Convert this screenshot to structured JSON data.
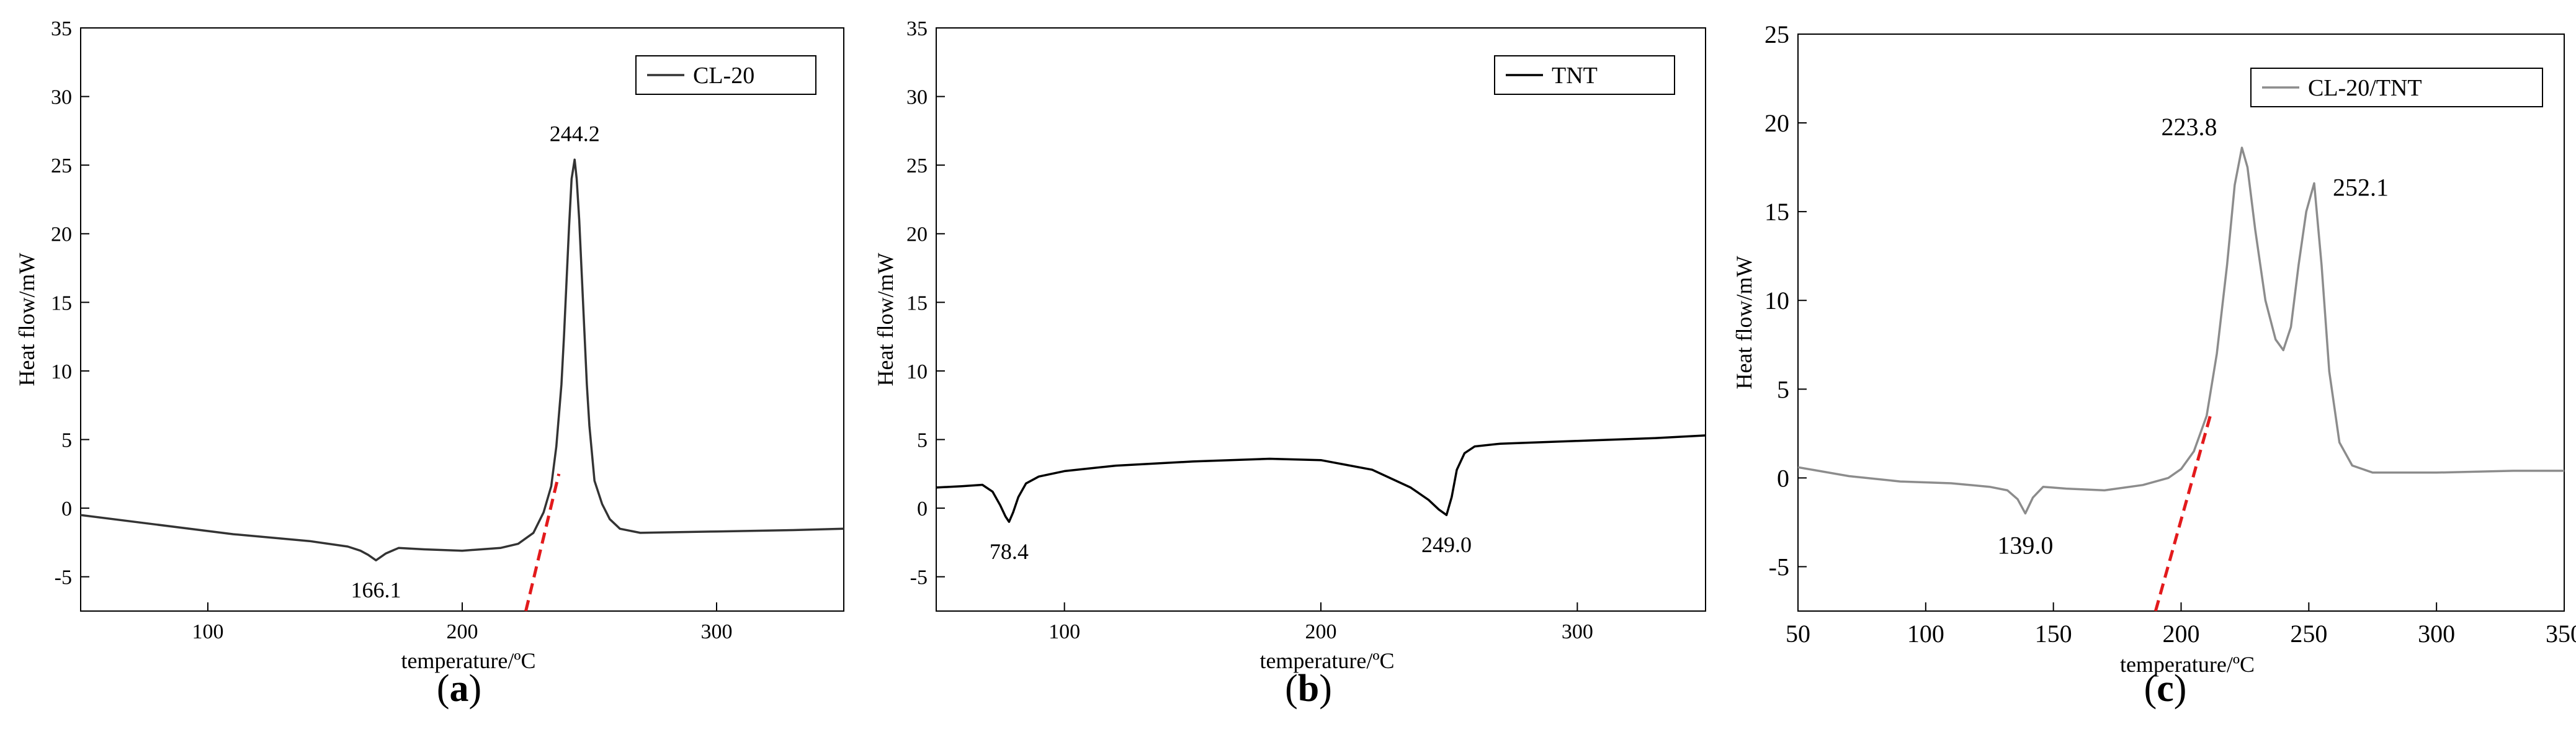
{
  "chart_data": [
    {
      "type": "line",
      "panel_label": "a",
      "xlabel": "temperature/ºC",
      "ylabel": "Heat flow/mW",
      "xlim": [
        50,
        350
      ],
      "ylim": [
        -7.5,
        35
      ],
      "xticks": [
        100,
        200,
        300
      ],
      "yticks": [
        -5,
        0,
        5,
        10,
        15,
        20,
        25,
        30,
        35
      ],
      "legend": "top-right",
      "grid": false,
      "series": [
        {
          "name": "CL-20",
          "color": "#333333",
          "x": [
            50,
            80,
            110,
            140,
            155,
            160,
            163,
            166.1,
            170,
            175,
            185,
            200,
            215,
            222,
            228,
            232,
            235,
            237,
            239,
            240,
            241,
            242,
            243,
            244.2,
            245,
            246,
            247,
            248,
            249,
            250,
            252,
            255,
            258,
            262,
            270,
            300,
            330,
            350
          ],
          "y": [
            -0.5,
            -1.2,
            -1.9,
            -2.4,
            -2.8,
            -3.1,
            -3.4,
            -3.8,
            -3.3,
            -2.9,
            -3.0,
            -3.1,
            -2.9,
            -2.6,
            -1.8,
            -0.3,
            1.6,
            4.5,
            9.0,
            12.5,
            16.5,
            20.5,
            24.0,
            25.4,
            24.0,
            21.0,
            17.0,
            13.0,
            9.0,
            6.0,
            2.0,
            0.3,
            -0.8,
            -1.5,
            -1.8,
            -1.7,
            -1.6,
            -1.5
          ]
        }
      ],
      "annotations": [
        {
          "text": "244.2",
          "x": 244.2,
          "y": 25.4
        },
        {
          "text": "166.1",
          "x": 166.1,
          "y": -3.8
        }
      ],
      "onset_line": {
        "color": "#e31a1c",
        "x": [
          225,
          238
        ],
        "y": [
          -7.5,
          2.5
        ]
      }
    },
    {
      "type": "line",
      "panel_label": "b",
      "xlabel": "temperature/ºC",
      "ylabel": "Heat flow/mW",
      "xlim": [
        50,
        350
      ],
      "ylim": [
        -7.5,
        35
      ],
      "xticks": [
        100,
        200,
        300
      ],
      "yticks": [
        -5,
        0,
        5,
        10,
        15,
        20,
        25,
        30,
        35
      ],
      "legend": "top-right",
      "grid": false,
      "series": [
        {
          "name": "TNT",
          "color": "#000000",
          "x": [
            50,
            60,
            68,
            72,
            75,
            77,
            78.4,
            80,
            82,
            85,
            90,
            100,
            120,
            150,
            180,
            200,
            220,
            235,
            242,
            246,
            249.0,
            251,
            253,
            256,
            260,
            270,
            300,
            330,
            350
          ],
          "y": [
            1.5,
            1.6,
            1.7,
            1.2,
            0.2,
            -0.6,
            -1.0,
            -0.3,
            0.8,
            1.8,
            2.3,
            2.7,
            3.1,
            3.4,
            3.6,
            3.5,
            2.8,
            1.5,
            0.6,
            -0.1,
            -0.5,
            0.8,
            2.8,
            4.0,
            4.5,
            4.7,
            4.9,
            5.1,
            5.3
          ]
        }
      ],
      "annotations": [
        {
          "text": "78.4",
          "x": 78.4,
          "y": -1.0
        },
        {
          "text": "249.0",
          "x": 249.0,
          "y": -0.5
        }
      ]
    },
    {
      "type": "line",
      "panel_label": "c",
      "xlabel": "temperature/ºC",
      "ylabel": "Heat flow/mW",
      "xlim": [
        50,
        350
      ],
      "ylim": [
        -7.5,
        25
      ],
      "xticks": [
        50,
        100,
        150,
        200,
        250,
        300,
        350
      ],
      "yticks": [
        -5,
        0,
        5,
        10,
        15,
        20,
        25
      ],
      "legend": "top-right",
      "grid": false,
      "series": [
        {
          "name": "CL-20/TNT",
          "color": "#8c8c8c",
          "x": [
            50,
            70,
            90,
            110,
            125,
            132,
            136,
            139.0,
            142,
            146,
            155,
            170,
            185,
            195,
            200,
            205,
            210,
            214,
            218,
            221,
            223.8,
            226,
            229,
            233,
            237,
            240,
            243,
            246,
            249,
            252.1,
            255,
            258,
            262,
            267,
            275,
            300,
            330,
            350
          ],
          "y": [
            0.6,
            0.1,
            -0.2,
            -0.3,
            -0.5,
            -0.7,
            -1.2,
            -2.0,
            -1.1,
            -0.5,
            -0.6,
            -0.7,
            -0.4,
            0.0,
            0.5,
            1.5,
            3.5,
            7.0,
            12.0,
            16.5,
            18.6,
            17.5,
            14.0,
            10.0,
            7.8,
            7.2,
            8.5,
            12.0,
            15.0,
            16.6,
            12.0,
            6.0,
            2.0,
            0.7,
            0.3,
            0.3,
            0.4,
            0.4
          ]
        }
      ],
      "annotations": [
        {
          "text": "223.8",
          "x": 223.8,
          "y": 18.6
        },
        {
          "text": "252.1",
          "x": 252.1,
          "y": 16.6
        },
        {
          "text": "139.0",
          "x": 139.0,
          "y": -2.0
        }
      ],
      "onset_line": {
        "color": "#e31a1c",
        "x": [
          190,
          212
        ],
        "y": [
          -7.5,
          3.8
        ]
      }
    }
  ]
}
